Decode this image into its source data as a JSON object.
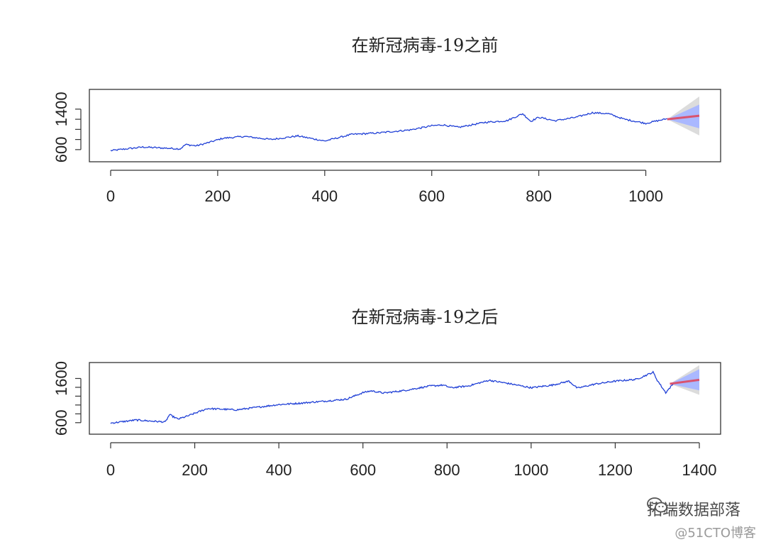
{
  "colors": {
    "series": "#1f3fd6",
    "forecast": "#d9536f",
    "band80": "#aab8ff",
    "band95": "#dcdcdc"
  },
  "watermark": {
    "text": "拓端数据部落",
    "subtext": "@51CTO博客"
  },
  "chart_data": [
    {
      "type": "line",
      "title": "在新冠病毒-19之前",
      "xlabel": "",
      "ylabel": "",
      "xlim": [
        0,
        1100
      ],
      "ylim": [
        500,
        1650
      ],
      "xticks": [
        "0",
        "200",
        "400",
        "600",
        "800",
        "1000"
      ],
      "yticks": [
        "600",
        "1400"
      ],
      "yminor": [
        800,
        1000,
        1200
      ],
      "series_anchor_points": {
        "x": [
          0,
          60,
          130,
          140,
          160,
          180,
          210,
          250,
          300,
          350,
          400,
          450,
          500,
          560,
          600,
          620,
          650,
          700,
          740,
          770,
          785,
          800,
          830,
          870,
          900,
          930,
          960,
          1000,
          1040
        ],
        "y": [
          580,
          650,
          615,
          700,
          675,
          730,
          825,
          860,
          800,
          870,
          770,
          900,
          930,
          990,
          1070,
          1090,
          1040,
          1140,
          1170,
          1310,
          1160,
          1240,
          1170,
          1240,
          1330,
          1310,
          1200,
          1120,
          1210
        ]
      },
      "forecast": {
        "x": [
          1040,
          1100
        ],
        "mean": [
          1200,
          1270
        ],
        "lo80": [
          1200,
          1020
        ],
        "hi80": [
          1200,
          1490
        ],
        "lo95": [
          1200,
          880
        ],
        "hi95": [
          1200,
          1650
        ]
      }
    },
    {
      "type": "line",
      "title": "在新冠病毒-19之后",
      "xlabel": "",
      "ylabel": "",
      "xlim": [
        0,
        1400
      ],
      "ylim": [
        500,
        1800
      ],
      "xticks": [
        "0",
        "200",
        "400",
        "600",
        "800",
        "1000",
        "1200",
        "1400"
      ],
      "yticks": [
        "600",
        "1600"
      ],
      "yminor": [
        800,
        1000,
        1200,
        1400
      ],
      "series_anchor_points": {
        "x": [
          0,
          60,
          130,
          140,
          160,
          180,
          230,
          300,
          350,
          400,
          450,
          500,
          560,
          600,
          620,
          650,
          700,
          760,
          790,
          810,
          850,
          900,
          950,
          1000,
          1050,
          1090,
          1110,
          1150,
          1200,
          1250,
          1290,
          1300,
          1320,
          1340
        ],
        "y": [
          590,
          660,
          615,
          780,
          680,
          740,
          920,
          890,
          950,
          1010,
          1040,
          1080,
          1130,
          1280,
          1320,
          1270,
          1330,
          1430,
          1450,
          1390,
          1430,
          1560,
          1480,
          1390,
          1450,
          1540,
          1380,
          1470,
          1540,
          1580,
          1740,
          1560,
          1280,
          1500
        ]
      },
      "forecast": {
        "x": [
          1330,
          1400
        ],
        "mean": [
          1480,
          1570
        ],
        "lo80": [
          1480,
          1330
        ],
        "hi80": [
          1480,
          1810
        ],
        "lo95": [
          1480,
          1230
        ],
        "hi95": [
          1480,
          1900
        ]
      }
    }
  ]
}
